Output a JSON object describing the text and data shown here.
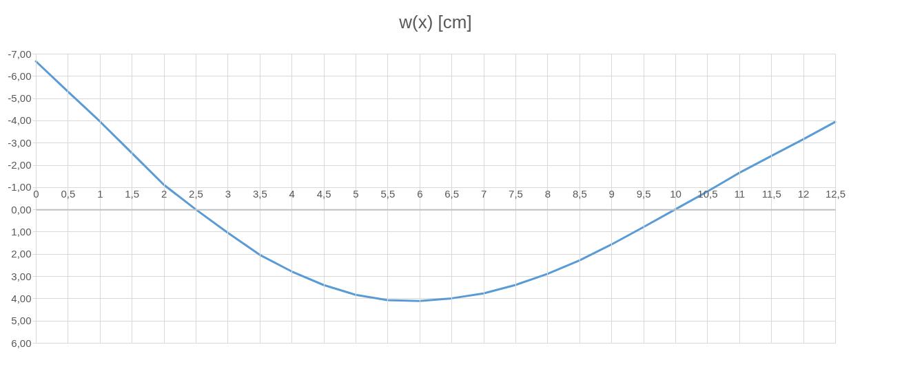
{
  "chart_data": {
    "type": "line",
    "title": "w(x) [cm]",
    "x": [
      0,
      0.5,
      1,
      1.5,
      2,
      2.5,
      3,
      3.5,
      4,
      4.5,
      5,
      5.5,
      6,
      6.5,
      7,
      7.5,
      8,
      8.5,
      9,
      9.5,
      10,
      10.5,
      11,
      11.5,
      12,
      12.5
    ],
    "series": [
      {
        "color": "#5b9bd5",
        "values": [
          -6.66,
          -5.3,
          -3.96,
          -2.54,
          -1.11,
          0.0,
          1.05,
          2.04,
          2.79,
          3.4,
          3.84,
          4.08,
          4.12,
          4.0,
          3.78,
          3.4,
          2.9,
          2.3,
          1.58,
          0.8,
          0.0,
          -0.8,
          -1.64,
          -2.4,
          -3.15,
          -3.93
        ]
      }
    ],
    "xlim": [
      0,
      12.5
    ],
    "xticks": [
      0,
      {
        "value": 0.5,
        "label": "0,5"
      },
      1,
      {
        "value": 1.5,
        "label": "1,5"
      },
      2,
      {
        "value": 2.5,
        "label": "2,5"
      },
      3,
      {
        "value": 3.5,
        "label": "3,5"
      },
      4,
      {
        "value": 4.5,
        "label": "4,5"
      },
      5,
      {
        "value": 5.5,
        "label": "5,5"
      },
      6,
      {
        "value": 6.5,
        "label": "6,5"
      },
      7,
      {
        "value": 7.5,
        "label": "7,5"
      },
      8,
      {
        "value": 8.5,
        "label": "8,5"
      },
      9,
      {
        "value": 9.5,
        "label": "9,5"
      },
      10,
      {
        "value": 10.5,
        "label": "10,5"
      },
      11,
      {
        "value": 11.5,
        "label": "11,5"
      },
      12,
      {
        "value": 12.5,
        "label": "12,5"
      }
    ],
    "ylim": [
      6,
      -7
    ],
    "yticks": [
      {
        "value": 6,
        "label": "6,00"
      },
      {
        "value": 5,
        "label": "5,00"
      },
      {
        "value": 4,
        "label": "4,00"
      },
      {
        "value": 3,
        "label": "3,00"
      },
      {
        "value": 2,
        "label": "2,00"
      },
      {
        "value": 1,
        "label": "1,00"
      },
      {
        "value": 0,
        "label": "0,00"
      },
      {
        "value": -1,
        "label": "-1,00"
      },
      {
        "value": -2,
        "label": "-2,00"
      },
      {
        "value": -3,
        "label": "-3,00"
      },
      {
        "value": -4,
        "label": "-4,00"
      },
      {
        "value": -5,
        "label": "-5,00"
      },
      {
        "value": -6,
        "label": "-6,00"
      },
      {
        "value": -7,
        "label": "-7,00"
      }
    ],
    "grid": true,
    "marker": "none",
    "line_style": "solid"
  }
}
